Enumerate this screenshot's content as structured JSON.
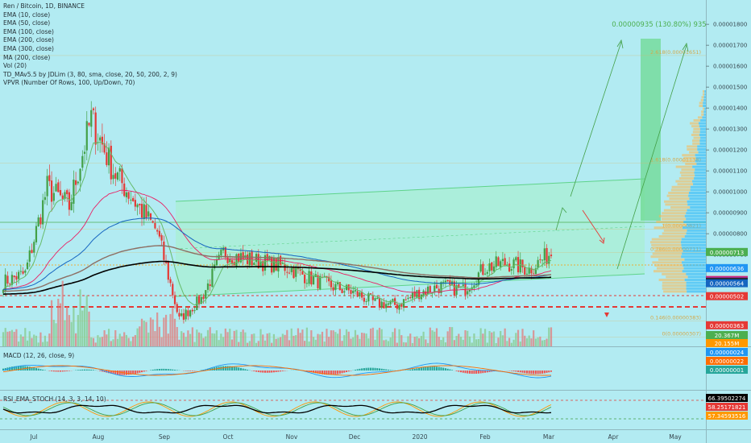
{
  "window": {
    "title": "Ren / Bitcoin, 1D, BINANCE"
  },
  "legend": [
    "EMA (10, close)",
    "EMA (50, close)",
    "EMA (100, close)",
    "EMA (200, close)",
    "EMA (300, close)",
    "MA (200, close)",
    "Vol (20)",
    "TD_MAv5.5 by JDLim (3, 80, sma, close, 20, 50, 200, 2, 9)",
    "VPVR (Number Of Rows, 100, Up/Down, 70)"
  ],
  "projection": {
    "label": "0.00000935 (130.80%) 935",
    "color": "#4caf50"
  },
  "fib_levels": [
    {
      "label": "2.618(0.00001651)",
      "value": 1.651e-05
    },
    {
      "label": "1.618(0.00001138)",
      "value": 1.138e-05
    },
    {
      "label": "1(0.00000821)",
      "value": 8.21e-06
    },
    {
      "label": "0.786(0.00000711)",
      "value": 7.11e-06
    },
    {
      "label": "0.146(0.00000383)",
      "value": 3.83e-06
    },
    {
      "label": "0(0.00000307)",
      "value": 3.07e-06
    }
  ],
  "price_badges": [
    {
      "text": "0.00000713",
      "value": 7.13e-06,
      "color": "#4caf50"
    },
    {
      "text": "0.00000636",
      "value": 6.36e-06,
      "color": "#2196f3"
    },
    {
      "text": "0.00000579",
      "value": 5.79e-06,
      "color": "#e91e63"
    },
    {
      "text": "0.00000575",
      "value": 5.75e-06,
      "color": "#9c27b0"
    },
    {
      "text": "0.00000571",
      "value": 5.71e-06,
      "color": "#795548"
    },
    {
      "text": "0.00000568",
      "value": 5.68e-06,
      "color": "#000000"
    },
    {
      "text": "0.00000564",
      "value": 5.64e-06,
      "color": "#1565c0"
    },
    {
      "text": "0.00000502",
      "value": 5.02e-06,
      "color": "#e53935"
    },
    {
      "text": "0.00000363",
      "value": 3.63e-06,
      "color": "#e53935"
    },
    {
      "text": "0.00000307",
      "value": 3.07e-06,
      "color": "#e53935"
    }
  ],
  "volume_badges": [
    {
      "text": "20.367M",
      "color": "#4caf50"
    },
    {
      "text": "20.155M",
      "color": "#ff9800"
    }
  ],
  "macd": {
    "label": "MACD (12, 26, close, 9)",
    "badges": [
      {
        "text": "0.00000024",
        "color": "#2196f3"
      },
      {
        "text": "0.00000022",
        "color": "#ff6d00"
      },
      {
        "text": "0.00000001",
        "color": "#26a69a"
      }
    ]
  },
  "rsi": {
    "label": "RSI_EMA_STOCH (14, 3, 3, 14, 10)",
    "badges": [
      {
        "text": "66.39502274",
        "color": "#000000"
      },
      {
        "text": "58.25171821",
        "color": "#e53935"
      },
      {
        "text": "57.34593516",
        "color": "#ff9800"
      }
    ]
  },
  "chart_data": {
    "type": "candlestick",
    "title": "Ren / Bitcoin, 1D, BINANCE",
    "y_axis_ticks": [
      "0.00001800",
      "0.00001700",
      "0.00001600",
      "0.00001500",
      "0.00001400",
      "0.00001300",
      "0.00001200",
      "0.00001100",
      "0.00001000",
      "0.00000900",
      "0.00000800",
      "0.00000700"
    ],
    "ylim": [
      2.7e-06,
      1.87e-05
    ],
    "x_axis_ticks": [
      "Jul",
      "Aug",
      "Sep",
      "Oct",
      "Nov",
      "Dec",
      "2020",
      "Feb",
      "Mar",
      "Apr",
      "May"
    ],
    "series": [
      {
        "name": "close",
        "x": [
          "Jun 24",
          "Jul 5",
          "Jul 15",
          "Jul 25",
          "Aug 5",
          "Aug 15",
          "Aug 25",
          "Sep 5",
          "Sep 15",
          "Sep 25",
          "Oct 5",
          "Oct 15",
          "Oct 25",
          "Nov 5",
          "Nov 15",
          "Nov 25",
          "Dec 5",
          "Dec 15",
          "Dec 25",
          "Jan 5",
          "Jan 15",
          "Jan 25",
          "Feb 5",
          "Feb 15",
          "Feb 25",
          "Mar 1"
        ],
        "values": [
          5.7e-06,
          6.1e-06,
          1.02e-05,
          9.3e-06,
          1.35e-05,
          1.1e-05,
          9.5e-06,
          8.1e-06,
          3.9e-06,
          4.9e-06,
          7.1e-06,
          6.8e-06,
          6.6e-06,
          6.4e-06,
          5.9e-06,
          5.5e-06,
          5.2e-06,
          4.7e-06,
          4.6e-06,
          5.2e-06,
          5.5e-06,
          5.3e-06,
          6.4e-06,
          6.6e-06,
          6.3e-06,
          7.1e-06
        ]
      }
    ],
    "grid": false,
    "legend": "top-left"
  }
}
